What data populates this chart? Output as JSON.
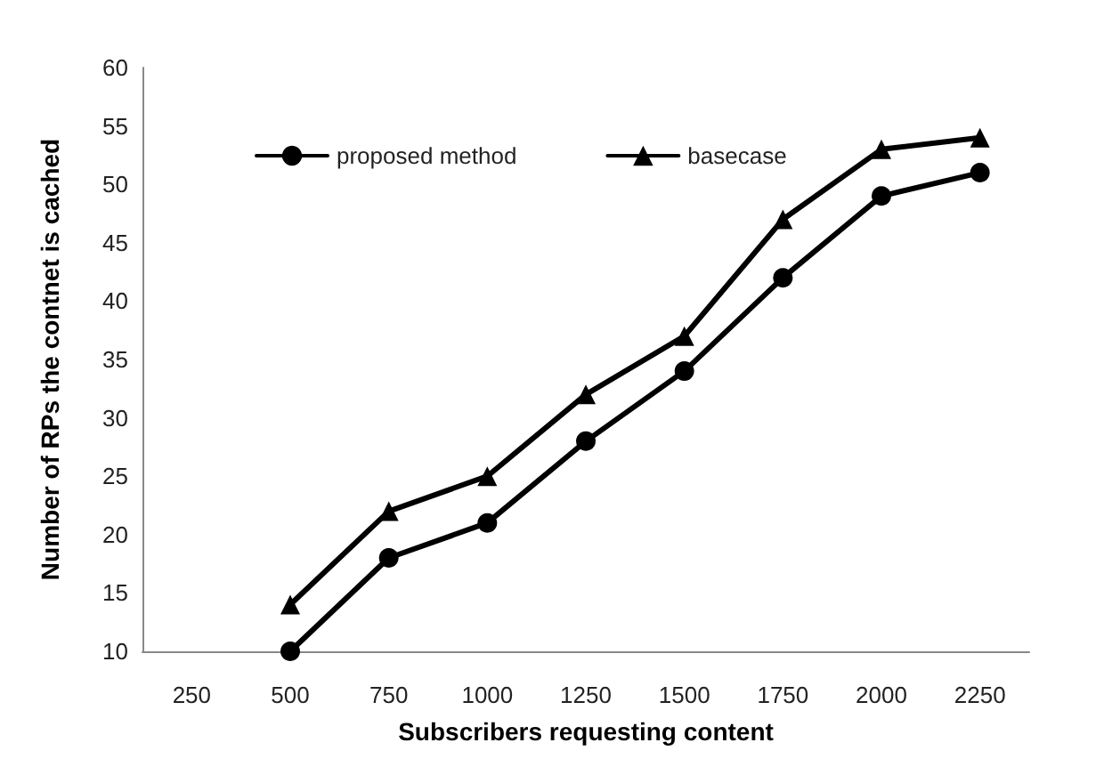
{
  "chart_data": {
    "type": "line",
    "xlabel": "Subscribers requesting content",
    "ylabel": "Number of RPs the contnet is cached",
    "categories": [
      "250",
      "500",
      "750",
      "1000",
      "1250",
      "1500",
      "1750",
      "2000",
      "2250"
    ],
    "series": [
      {
        "name": "proposed method",
        "color": "#000000",
        "marker": "circle",
        "values": [
          null,
          10,
          18,
          21,
          28,
          34,
          42,
          49,
          51
        ]
      },
      {
        "name": "basecase",
        "color": "#000000",
        "marker": "triangle",
        "values": [
          null,
          14,
          22,
          25,
          32,
          37,
          47,
          53,
          54
        ]
      }
    ],
    "ylim": [
      10,
      60
    ],
    "yticks": [
      10,
      15,
      20,
      25,
      30,
      35,
      40,
      45,
      50,
      55,
      60
    ],
    "grid": false,
    "legend": "top left",
    "line_style": "solid"
  }
}
